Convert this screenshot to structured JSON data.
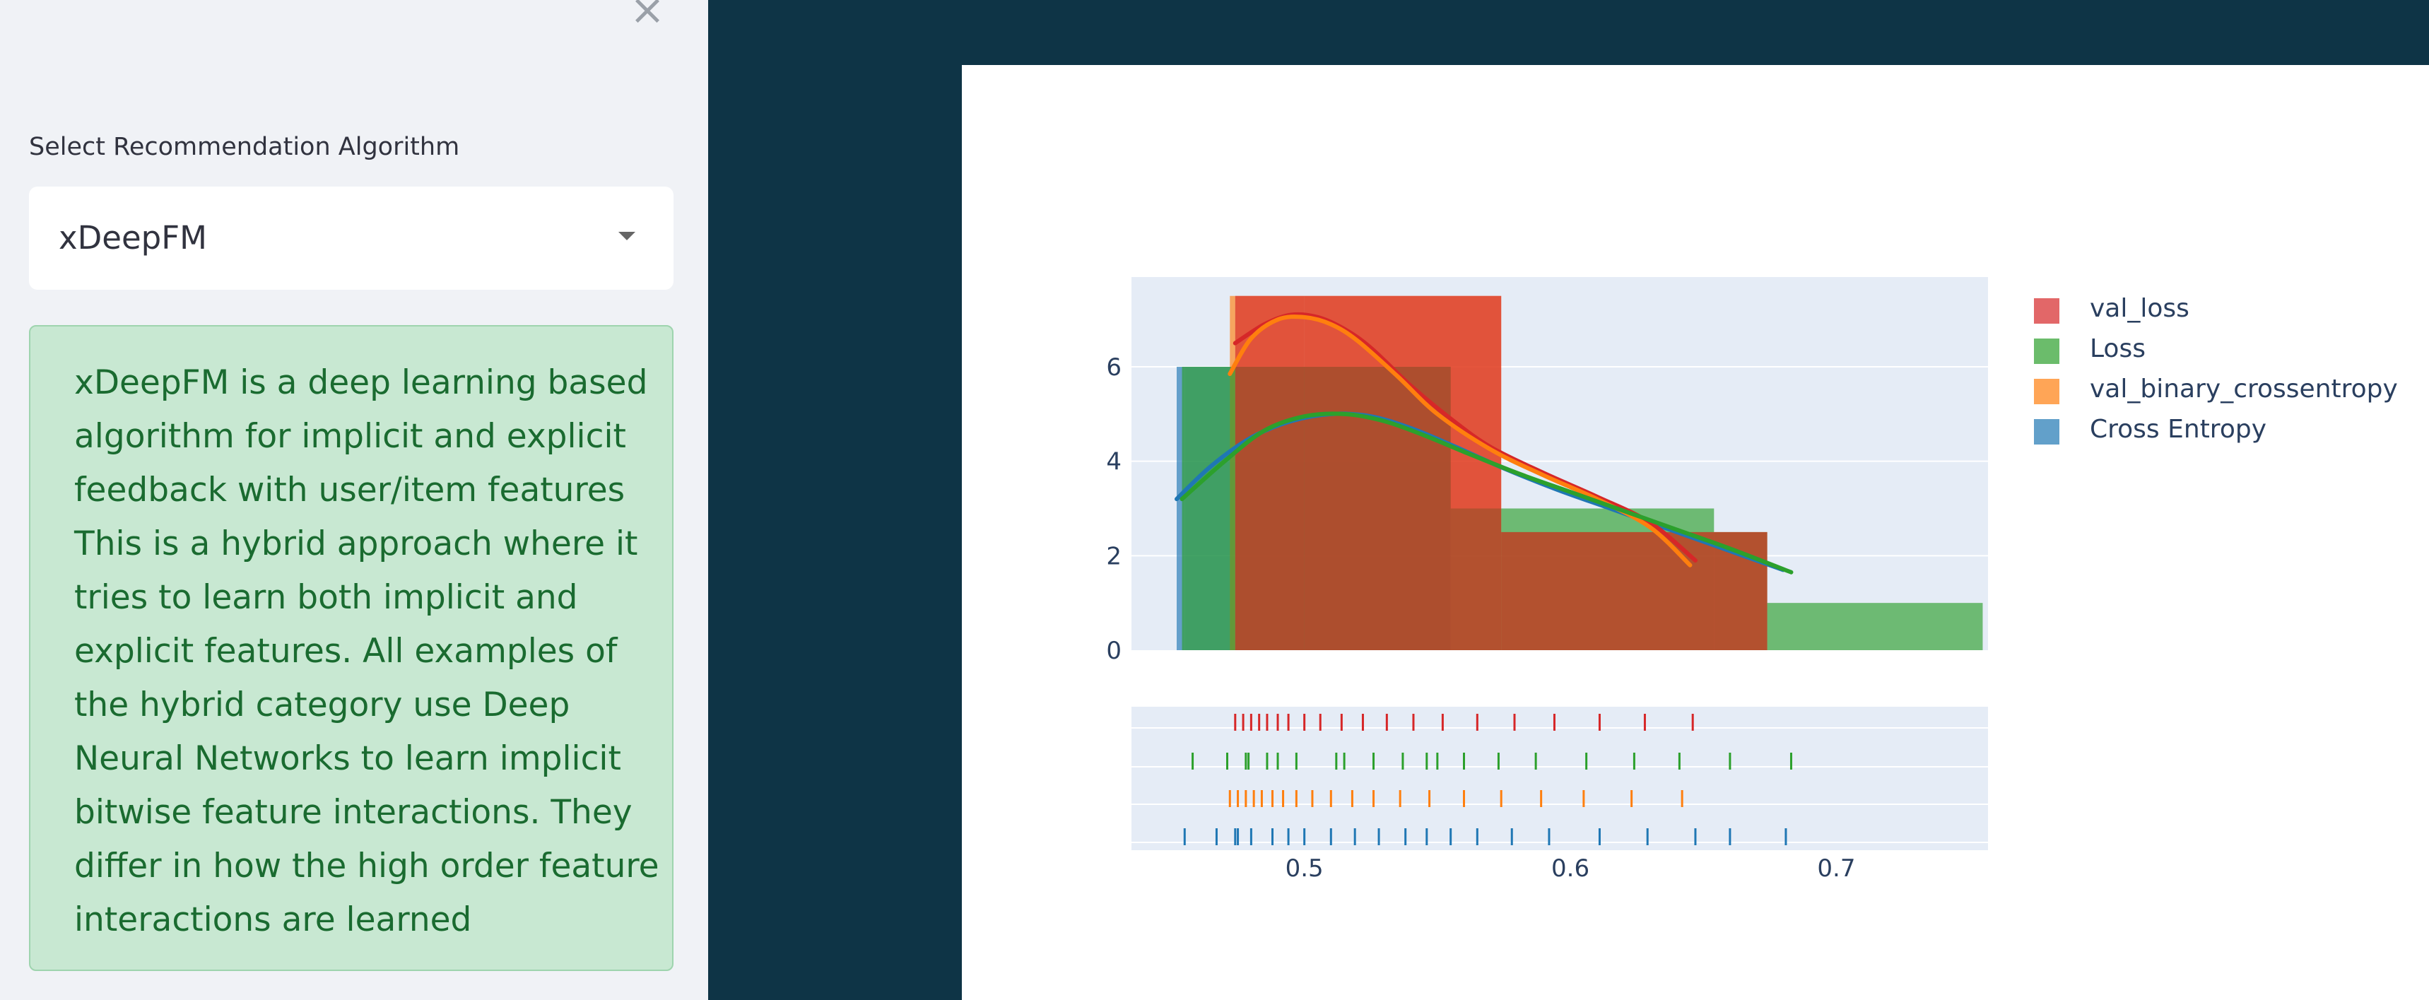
{
  "sidebar": {
    "close_glyph": "×",
    "select_label": "Select Recommendation Algorithm",
    "select_value": "xDeepFM",
    "info_text": "xDeepFM is a deep learning based algorithm for implicit and explicit feedback with user/item features This is a hybrid approach where it tries to learn both implicit and explicit features. All examples of the hybrid category use Deep Neural Networks to learn implicit bitwise feature interactions. They differ in how the high order feature interactions are learned"
  },
  "chart_data": {
    "type": "histogram",
    "title": "",
    "xlabel": "",
    "ylabel": "",
    "xlim": [
      0.435,
      0.757
    ],
    "ylim": [
      0,
      7.9
    ],
    "xticks": [
      "0.5",
      "0.6",
      "0.7"
    ],
    "yticks": [
      "0",
      "2",
      "4",
      "6"
    ],
    "legend": {
      "position": "top-right",
      "entries": [
        "val_loss",
        "Loss",
        "val_binary_crossentropy",
        "Cross Entropy"
      ]
    },
    "colors": {
      "val_loss": "#d62728",
      "Loss": "#2ca02c",
      "val_binary_crossentropy": "#ff7f0e",
      "Cross Entropy": "#1f77b4"
    },
    "series": [
      {
        "name": "val_loss",
        "bins": [
          [
            0.474,
            0.5,
            7.5
          ],
          [
            0.5,
            0.574,
            7.5
          ],
          [
            0.574,
            0.674,
            2.5
          ]
        ],
        "kde": [
          [
            0.474,
            6.5
          ],
          [
            0.485,
            6.9
          ],
          [
            0.495,
            7.1
          ],
          [
            0.505,
            7.05
          ],
          [
            0.515,
            6.8
          ],
          [
            0.525,
            6.4
          ],
          [
            0.54,
            5.6
          ],
          [
            0.555,
            4.9
          ],
          [
            0.57,
            4.3
          ],
          [
            0.59,
            3.75
          ],
          [
            0.61,
            3.25
          ],
          [
            0.63,
            2.7
          ],
          [
            0.647,
            1.9
          ]
        ],
        "rug": [
          0.474,
          0.477,
          0.48,
          0.483,
          0.486,
          0.49,
          0.494,
          0.5,
          0.506,
          0.514,
          0.522,
          0.531,
          0.541,
          0.552,
          0.565,
          0.579,
          0.594,
          0.611,
          0.628,
          0.646
        ]
      },
      {
        "name": "Loss",
        "bins": [
          [
            0.454,
            0.474,
            6.0
          ],
          [
            0.474,
            0.555,
            6.0
          ],
          [
            0.555,
            0.574,
            3.0
          ],
          [
            0.574,
            0.654,
            3.0
          ],
          [
            0.654,
            0.674,
            2.5
          ],
          [
            0.674,
            0.755,
            1.0
          ]
        ],
        "kde": [
          [
            0.454,
            3.2
          ],
          [
            0.47,
            4.0
          ],
          [
            0.485,
            4.65
          ],
          [
            0.5,
            4.95
          ],
          [
            0.515,
            5.0
          ],
          [
            0.53,
            4.85
          ],
          [
            0.545,
            4.55
          ],
          [
            0.56,
            4.2
          ],
          [
            0.58,
            3.75
          ],
          [
            0.6,
            3.35
          ],
          [
            0.62,
            2.95
          ],
          [
            0.64,
            2.55
          ],
          [
            0.66,
            2.15
          ],
          [
            0.683,
            1.65
          ]
        ],
        "rug": [
          0.458,
          0.471,
          0.478,
          0.479,
          0.486,
          0.49,
          0.497,
          0.512,
          0.515,
          0.526,
          0.537,
          0.546,
          0.55,
          0.56,
          0.573,
          0.587,
          0.606,
          0.624,
          0.641,
          0.66,
          0.683
        ]
      },
      {
        "name": "val_binary_crossentropy",
        "bins": [
          [
            0.472,
            0.474,
            7.5
          ],
          [
            0.474,
            0.5,
            7.5
          ],
          [
            0.5,
            0.574,
            7.5
          ],
          [
            0.574,
            0.674,
            2.5
          ]
        ],
        "kde": [
          [
            0.472,
            5.85
          ],
          [
            0.48,
            6.6
          ],
          [
            0.49,
            7.0
          ],
          [
            0.5,
            7.05
          ],
          [
            0.51,
            6.9
          ],
          [
            0.52,
            6.55
          ],
          [
            0.535,
            5.8
          ],
          [
            0.55,
            5.0
          ],
          [
            0.57,
            4.25
          ],
          [
            0.59,
            3.7
          ],
          [
            0.61,
            3.2
          ],
          [
            0.63,
            2.6
          ],
          [
            0.645,
            1.8
          ]
        ],
        "rug": [
          0.472,
          0.475,
          0.478,
          0.481,
          0.484,
          0.488,
          0.492,
          0.497,
          0.503,
          0.51,
          0.518,
          0.526,
          0.536,
          0.547,
          0.56,
          0.574,
          0.589,
          0.605,
          0.623,
          0.642
        ]
      },
      {
        "name": "Cross Entropy",
        "bins": [
          [
            0.452,
            0.455,
            6.0
          ],
          [
            0.455,
            0.474,
            6.0
          ],
          [
            0.474,
            0.555,
            6.0
          ]
        ],
        "kde": [
          [
            0.452,
            3.2
          ],
          [
            0.465,
            3.9
          ],
          [
            0.48,
            4.5
          ],
          [
            0.495,
            4.85
          ],
          [
            0.51,
            5.0
          ],
          [
            0.525,
            4.95
          ],
          [
            0.54,
            4.7
          ],
          [
            0.555,
            4.35
          ],
          [
            0.575,
            3.85
          ],
          [
            0.595,
            3.4
          ],
          [
            0.615,
            3.0
          ],
          [
            0.635,
            2.6
          ],
          [
            0.655,
            2.2
          ],
          [
            0.68,
            1.7
          ]
        ],
        "rug": [
          0.455,
          0.467,
          0.474,
          0.475,
          0.48,
          0.488,
          0.494,
          0.5,
          0.51,
          0.519,
          0.528,
          0.538,
          0.546,
          0.555,
          0.565,
          0.578,
          0.592,
          0.611,
          0.629,
          0.647,
          0.66,
          0.681
        ]
      }
    ]
  }
}
